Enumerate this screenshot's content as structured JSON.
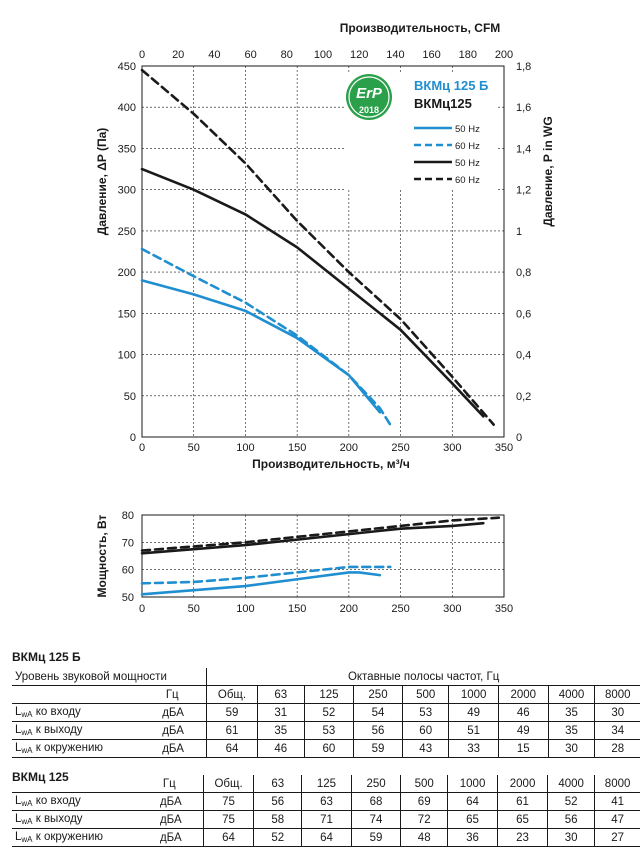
{
  "chart_data": [
    {
      "type": "line",
      "xlabel": "Производительность, м³/ч",
      "x2label": "Производительность, CFM",
      "ylabel": "Давление, ΔP (Па)",
      "y2label": "Давление,  P in WG",
      "xlim": [
        0,
        350
      ],
      "ylim": [
        0,
        450
      ],
      "x2lim": [
        0,
        200
      ],
      "y2lim": [
        0,
        1.8
      ],
      "x_ticks": [
        "0",
        "50",
        "100",
        "150",
        "200",
        "250",
        "300",
        "350"
      ],
      "y_ticks": [
        "0",
        "50",
        "100",
        "150",
        "200",
        "250",
        "300",
        "350",
        "400",
        "450"
      ],
      "x2_ticks": [
        "0",
        "20",
        "40",
        "60",
        "80",
        "100",
        "120",
        "140",
        "160",
        "180",
        "200"
      ],
      "y2_ticks": [
        "0",
        "0,2",
        "0,4",
        "0,6",
        "0,8",
        "1",
        "1,2",
        "1,4",
        "1,6",
        "1,8"
      ],
      "grid": true,
      "legend_title_1": "ВКМц 125 Б",
      "legend_title_2": "ВКМц125",
      "badge": {
        "text": "ErP",
        "year": "2018"
      },
      "series": [
        {
          "name": "50 Hz",
          "model": "ВКМц 125 Б",
          "color": "#1f8fd1",
          "dash": false,
          "x": [
            0,
            50,
            100,
            150,
            200,
            220,
            230
          ],
          "y": [
            190,
            173,
            153,
            120,
            75,
            45,
            30
          ]
        },
        {
          "name": "60 Hz",
          "model": "ВКМц 125 Б",
          "color": "#1f8fd1",
          "dash": true,
          "x": [
            0,
            50,
            100,
            150,
            200,
            230,
            240
          ],
          "y": [
            228,
            195,
            163,
            123,
            75,
            35,
            15
          ]
        },
        {
          "name": "50 Hz",
          "model": "ВКМц125",
          "color": "#1a1a1a",
          "dash": false,
          "x": [
            0,
            50,
            100,
            150,
            200,
            250,
            300,
            330
          ],
          "y": [
            325,
            300,
            270,
            230,
            180,
            130,
            65,
            25
          ]
        },
        {
          "name": "60 Hz",
          "model": "ВКМц125",
          "color": "#1a1a1a",
          "dash": true,
          "x": [
            0,
            50,
            100,
            150,
            200,
            250,
            300,
            340
          ],
          "y": [
            445,
            392,
            332,
            262,
            200,
            143,
            73,
            15
          ]
        }
      ]
    },
    {
      "type": "line",
      "ylabel": "Мощность, Вт",
      "xlim": [
        0,
        350
      ],
      "ylim": [
        50,
        80
      ],
      "x_ticks": [
        "0",
        "50",
        "100",
        "150",
        "200",
        "250",
        "300",
        "350"
      ],
      "y_ticks": [
        "50",
        "60",
        "70",
        "80"
      ],
      "grid": true,
      "series": [
        {
          "name": "50 Hz",
          "model": "ВКМц 125 Б",
          "color": "#1f8fd1",
          "dash": false,
          "x": [
            0,
            100,
            150,
            200,
            210,
            230
          ],
          "y": [
            51,
            54,
            56.5,
            59,
            59,
            58
          ]
        },
        {
          "name": "60 Hz",
          "model": "ВКМц 125 Б",
          "color": "#1f8fd1",
          "dash": true,
          "x": [
            0,
            50,
            100,
            150,
            200,
            240
          ],
          "y": [
            55,
            55.5,
            57,
            59,
            61,
            61
          ]
        },
        {
          "name": "50 Hz",
          "model": "ВКМц125",
          "color": "#1a1a1a",
          "dash": false,
          "x": [
            0,
            100,
            200,
            250,
            300,
            330
          ],
          "y": [
            66,
            69,
            73,
            75,
            76,
            77
          ]
        },
        {
          "name": "60 Hz",
          "model": "ВКМц125",
          "color": "#1a1a1a",
          "dash": true,
          "x": [
            0,
            100,
            200,
            250,
            300,
            345
          ],
          "y": [
            67,
            70,
            74,
            76,
            78,
            79
          ]
        }
      ]
    }
  ],
  "tables": {
    "title1": "ВКМц 125 Б",
    "title2": "ВКМц 125",
    "header_label": "Уровень звуковой мощности",
    "bands_title": "Октавные полосы частот, Гц",
    "hz_label": "Гц",
    "columns": [
      "Общ.",
      "63",
      "125",
      "250",
      "500",
      "1000",
      "2000",
      "4000",
      "8000"
    ],
    "rows1": [
      {
        "label": "ко входу",
        "unit": "дБА",
        "values": [
          "59",
          "31",
          "52",
          "54",
          "53",
          "49",
          "46",
          "35",
          "30"
        ]
      },
      {
        "label": "к выходу",
        "unit": "дБА",
        "values": [
          "61",
          "35",
          "53",
          "56",
          "60",
          "51",
          "49",
          "35",
          "34"
        ]
      },
      {
        "label": "к окружению",
        "unit": "дБА",
        "values": [
          "64",
          "46",
          "60",
          "59",
          "43",
          "33",
          "15",
          "30",
          "28"
        ]
      }
    ],
    "rows2": [
      {
        "label": "ко входу",
        "unit": "дБА",
        "values": [
          "75",
          "56",
          "63",
          "68",
          "69",
          "64",
          "61",
          "52",
          "41"
        ]
      },
      {
        "label": "к выходу",
        "unit": "дБА",
        "values": [
          "75",
          "58",
          "71",
          "74",
          "72",
          "65",
          "65",
          "56",
          "47"
        ]
      },
      {
        "label": "к окружению",
        "unit": "дБА",
        "values": [
          "64",
          "52",
          "64",
          "59",
          "48",
          "36",
          "23",
          "30",
          "27"
        ]
      }
    ]
  }
}
